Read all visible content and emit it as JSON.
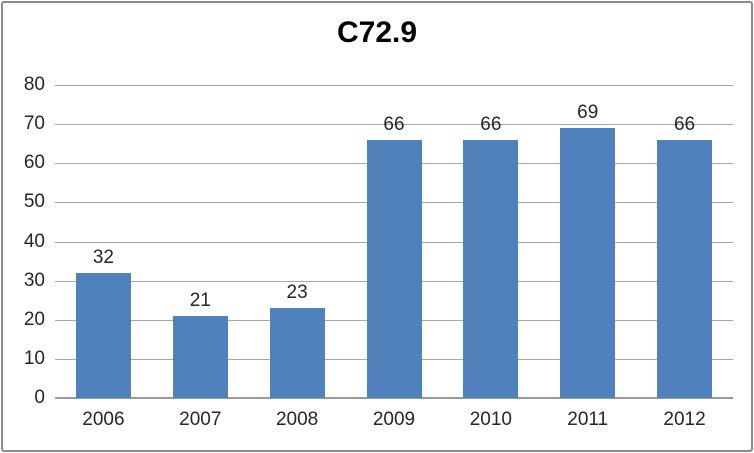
{
  "chart_data": {
    "type": "bar",
    "title": "C72.9",
    "categories": [
      "2006",
      "2007",
      "2008",
      "2009",
      "2010",
      "2011",
      "2012"
    ],
    "values": [
      32,
      21,
      23,
      66,
      66,
      69,
      66
    ],
    "xlabel": "",
    "ylabel": "",
    "ylim": [
      0,
      80
    ],
    "yticks": [
      0,
      10,
      20,
      30,
      40,
      50,
      60,
      70,
      80
    ],
    "grid": "horizontal",
    "legend": "none",
    "data_labels": true,
    "colors": {
      "bar": "#4F81BD",
      "gridline": "#A6A6A6",
      "axis_line": "#9A9A9A",
      "text": "#262626",
      "title": "#000000",
      "border": "#8C8C8C",
      "background": "#FFFFFF"
    }
  }
}
